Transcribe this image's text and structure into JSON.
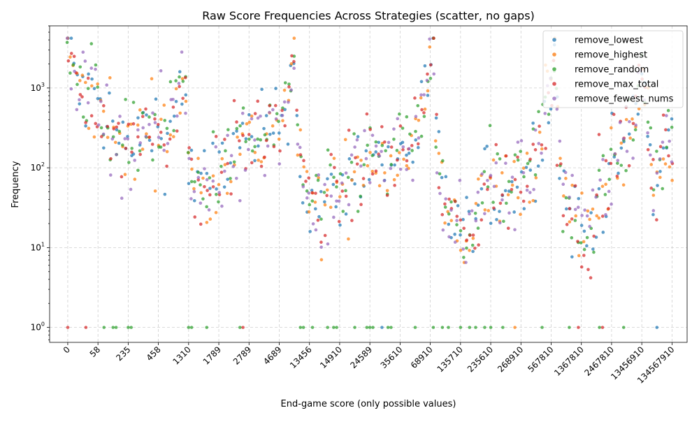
{
  "chart_data": {
    "type": "scatter",
    "title": "Raw Score Frequencies Across Strategies (scatter, no gaps)",
    "xlabel": "End-game score (only possible values)",
    "ylabel": "Frequency",
    "yscale": "log",
    "ylim": [
      0.65,
      6000
    ],
    "y_ticks": [
      {
        "value": 1,
        "label": "10",
        "sup": "0"
      },
      {
        "value": 10,
        "label": "10",
        "sup": "1"
      },
      {
        "value": 100,
        "label": "10",
        "sup": "2"
      },
      {
        "value": 1000,
        "label": "10",
        "sup": "3"
      }
    ],
    "x_index_range": [
      -6,
      205
    ],
    "x_tick_labels": [
      {
        "index": 0,
        "label": "0"
      },
      {
        "index": 10,
        "label": "58"
      },
      {
        "index": 20,
        "label": "235"
      },
      {
        "index": 30,
        "label": "458"
      },
      {
        "index": 40,
        "label": "1310"
      },
      {
        "index": 50,
        "label": "1789"
      },
      {
        "index": 60,
        "label": "2789"
      },
      {
        "index": 70,
        "label": "4689"
      },
      {
        "index": 80,
        "label": "13456"
      },
      {
        "index": 90,
        "label": "14910"
      },
      {
        "index": 100,
        "label": "24589"
      },
      {
        "index": 110,
        "label": "35610"
      },
      {
        "index": 120,
        "label": "68910"
      },
      {
        "index": 130,
        "label": "135710"
      },
      {
        "index": 140,
        "label": "235610"
      },
      {
        "index": 150,
        "label": "268910"
      },
      {
        "index": 160,
        "label": "567810"
      },
      {
        "index": 170,
        "label": "1367810"
      },
      {
        "index": 180,
        "label": "2467810"
      },
      {
        "index": 190,
        "label": "13456910"
      },
      {
        "index": 200,
        "label": "134567910"
      }
    ],
    "grid": true,
    "legend_position": "top-right",
    "n_points_per_series": 201,
    "series": [
      {
        "name": "remove_lowest",
        "color": "#1f77b4"
      },
      {
        "name": "remove_highest",
        "color": "#ff7f0e"
      },
      {
        "name": "remove_random",
        "color": "#2ca02c"
      },
      {
        "name": "remove_max_total",
        "color": "#d62728"
      },
      {
        "name": "remove_fewest_nums",
        "color": "#9467bd"
      }
    ],
    "envelope": [
      {
        "index": 0,
        "value": 3800
      },
      {
        "index": 2,
        "value": 1900
      },
      {
        "index": 4,
        "value": 900
      },
      {
        "index": 6,
        "value": 600
      },
      {
        "index": 8,
        "value": 800
      },
      {
        "index": 10,
        "value": 700
      },
      {
        "index": 12,
        "value": 500
      },
      {
        "index": 14,
        "value": 400
      },
      {
        "index": 16,
        "value": 250
      },
      {
        "index": 18,
        "value": 200
      },
      {
        "index": 20,
        "value": 180
      },
      {
        "index": 22,
        "value": 170
      },
      {
        "index": 24,
        "value": 250
      },
      {
        "index": 26,
        "value": 300
      },
      {
        "index": 28,
        "value": 350
      },
      {
        "index": 30,
        "value": 300
      },
      {
        "index": 32,
        "value": 250
      },
      {
        "index": 34,
        "value": 300
      },
      {
        "index": 36,
        "value": 600
      },
      {
        "index": 38,
        "value": 1500
      },
      {
        "index": 39,
        "value": 800
      },
      {
        "index": 40,
        "value": 80
      },
      {
        "index": 42,
        "value": 60
      },
      {
        "index": 46,
        "value": 60
      },
      {
        "index": 50,
        "value": 120
      },
      {
        "index": 54,
        "value": 150
      },
      {
        "index": 58,
        "value": 180
      },
      {
        "index": 62,
        "value": 200
      },
      {
        "index": 66,
        "value": 250
      },
      {
        "index": 70,
        "value": 400
      },
      {
        "index": 72,
        "value": 600
      },
      {
        "index": 74,
        "value": 1300
      },
      {
        "index": 75,
        "value": 2500
      },
      {
        "index": 76,
        "value": 300
      },
      {
        "index": 78,
        "value": 60
      },
      {
        "index": 80,
        "value": 35
      },
      {
        "index": 84,
        "value": 30
      },
      {
        "index": 88,
        "value": 40
      },
      {
        "index": 92,
        "value": 60
      },
      {
        "index": 96,
        "value": 100
      },
      {
        "index": 100,
        "value": 150
      },
      {
        "index": 104,
        "value": 120
      },
      {
        "index": 108,
        "value": 120
      },
      {
        "index": 112,
        "value": 180
      },
      {
        "index": 116,
        "value": 300
      },
      {
        "index": 118,
        "value": 700
      },
      {
        "index": 120,
        "value": 1600
      },
      {
        "index": 121,
        "value": 3500
      },
      {
        "index": 122,
        "value": 200
      },
      {
        "index": 124,
        "value": 40
      },
      {
        "index": 128,
        "value": 20
      },
      {
        "index": 132,
        "value": 15
      },
      {
        "index": 136,
        "value": 25
      },
      {
        "index": 140,
        "value": 60
      },
      {
        "index": 144,
        "value": 50
      },
      {
        "index": 148,
        "value": 60
      },
      {
        "index": 152,
        "value": 80
      },
      {
        "index": 156,
        "value": 200
      },
      {
        "index": 158,
        "value": 500
      },
      {
        "index": 160,
        "value": 1200
      },
      {
        "index": 161,
        "value": 3500
      },
      {
        "index": 162,
        "value": 400
      },
      {
        "index": 164,
        "value": 60
      },
      {
        "index": 168,
        "value": 20
      },
      {
        "index": 172,
        "value": 15
      },
      {
        "index": 176,
        "value": 40
      },
      {
        "index": 180,
        "value": 100
      },
      {
        "index": 184,
        "value": 200
      },
      {
        "index": 188,
        "value": 500
      },
      {
        "index": 190,
        "value": 1500
      },
      {
        "index": 192,
        "value": 300
      },
      {
        "index": 194,
        "value": 30
      },
      {
        "index": 196,
        "value": 100
      },
      {
        "index": 198,
        "value": 250
      },
      {
        "index": 200,
        "value": 300
      }
    ],
    "spread_decades": 0.55,
    "ones_points": [
      {
        "series": 3,
        "index": 0,
        "value": 1
      },
      {
        "series": 3,
        "index": 6,
        "value": 1
      },
      {
        "series": 2,
        "index": 12,
        "value": 1
      },
      {
        "series": 2,
        "index": 15,
        "value": 1
      },
      {
        "series": 2,
        "index": 16,
        "value": 1
      },
      {
        "series": 2,
        "index": 20,
        "value": 1
      },
      {
        "series": 2,
        "index": 21,
        "value": 1
      },
      {
        "series": 2,
        "index": 40,
        "value": 1
      },
      {
        "series": 2,
        "index": 41,
        "value": 1
      },
      {
        "series": 2,
        "index": 46,
        "value": 1
      },
      {
        "series": 2,
        "index": 57,
        "value": 1
      },
      {
        "series": 3,
        "index": 58,
        "value": 1
      },
      {
        "series": 2,
        "index": 77,
        "value": 1
      },
      {
        "series": 2,
        "index": 78,
        "value": 1
      },
      {
        "series": 2,
        "index": 81,
        "value": 1
      },
      {
        "series": 2,
        "index": 86,
        "value": 1
      },
      {
        "series": 2,
        "index": 88,
        "value": 1
      },
      {
        "series": 2,
        "index": 89,
        "value": 1
      },
      {
        "series": 2,
        "index": 95,
        "value": 1
      },
      {
        "series": 2,
        "index": 99,
        "value": 1
      },
      {
        "series": 2,
        "index": 100,
        "value": 1
      },
      {
        "series": 2,
        "index": 101,
        "value": 1
      },
      {
        "series": 0,
        "index": 104,
        "value": 1
      },
      {
        "series": 2,
        "index": 106,
        "value": 1
      },
      {
        "series": 2,
        "index": 107,
        "value": 1
      },
      {
        "series": 2,
        "index": 115,
        "value": 1
      },
      {
        "series": 2,
        "index": 121,
        "value": 1
      },
      {
        "series": 2,
        "index": 124,
        "value": 1
      },
      {
        "series": 2,
        "index": 126,
        "value": 1
      },
      {
        "series": 2,
        "index": 130,
        "value": 1
      },
      {
        "series": 2,
        "index": 133,
        "value": 1
      },
      {
        "series": 2,
        "index": 135,
        "value": 1
      },
      {
        "series": 2,
        "index": 138,
        "value": 1
      },
      {
        "series": 2,
        "index": 140,
        "value": 1
      },
      {
        "series": 2,
        "index": 144,
        "value": 1
      },
      {
        "series": 1,
        "index": 148,
        "value": 1
      },
      {
        "series": 2,
        "index": 157,
        "value": 1
      },
      {
        "series": 2,
        "index": 166,
        "value": 1
      },
      {
        "series": 3,
        "index": 169,
        "value": 1
      },
      {
        "series": 2,
        "index": 176,
        "value": 1
      },
      {
        "series": 3,
        "index": 177,
        "value": 1
      },
      {
        "series": 2,
        "index": 184,
        "value": 1
      },
      {
        "series": 0,
        "index": 195,
        "value": 1
      }
    ]
  }
}
